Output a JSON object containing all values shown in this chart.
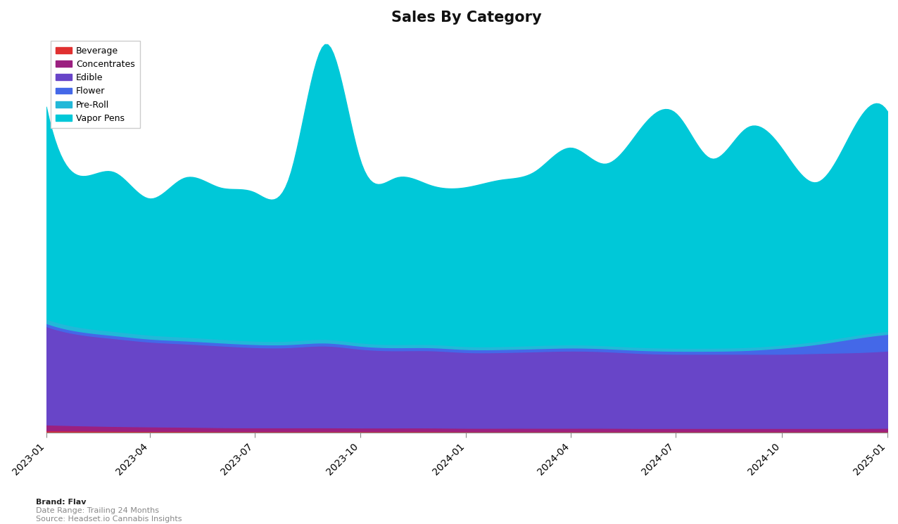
{
  "title": "Sales By Category",
  "categories": [
    "Beverage",
    "Concentrates",
    "Edible",
    "Flower",
    "Pre-Roll",
    "Vapor Pens"
  ],
  "colors": [
    "#e03030",
    "#9b2080",
    "#6845c8",
    "#4468e8",
    "#22b8d8",
    "#00c8d8"
  ],
  "background_color": "#ffffff",
  "footer_brand": "Brand: Flav",
  "footer_daterange": "Date Range: Trailing 24 Months",
  "footer_source": "Source: Headset.io Cannabis Insights",
  "x_dates": [
    "2023-01-01",
    "2023-02-01",
    "2023-03-01",
    "2023-04-01",
    "2023-05-01",
    "2023-06-01",
    "2023-07-01",
    "2023-08-01",
    "2023-09-01",
    "2023-10-01",
    "2023-11-01",
    "2023-12-01",
    "2024-01-01",
    "2024-02-01",
    "2024-03-01",
    "2024-04-01",
    "2024-05-01",
    "2024-06-01",
    "2024-07-01",
    "2024-08-01",
    "2024-09-01",
    "2024-10-01",
    "2024-11-01",
    "2024-12-01",
    "2025-01-01"
  ],
  "beverage": [
    150,
    140,
    130,
    120,
    120,
    110,
    110,
    110,
    110,
    110,
    110,
    110,
    100,
    100,
    100,
    100,
    100,
    100,
    100,
    100,
    100,
    100,
    100,
    100,
    100
  ],
  "concentrates": [
    400,
    350,
    320,
    300,
    280,
    260,
    250,
    250,
    250,
    240,
    240,
    240,
    230,
    230,
    230,
    230,
    230,
    220,
    220,
    220,
    220,
    220,
    220,
    220,
    230
  ],
  "edible": [
    6500,
    6000,
    5800,
    5600,
    5500,
    5400,
    5300,
    5300,
    5400,
    5200,
    5100,
    5100,
    5000,
    5000,
    5050,
    5100,
    5050,
    4950,
    4900,
    4900,
    4900,
    4900,
    4950,
    5000,
    5100
  ],
  "flower": [
    200,
    200,
    200,
    200,
    200,
    200,
    200,
    200,
    200,
    200,
    200,
    200,
    200,
    200,
    200,
    200,
    200,
    200,
    200,
    200,
    250,
    400,
    600,
    900,
    1100
  ],
  "preroll": [
    300,
    280,
    270,
    260,
    250,
    240,
    230,
    230,
    240,
    220,
    210,
    210,
    200,
    200,
    210,
    210,
    200,
    200,
    200,
    200,
    200,
    200,
    200,
    200,
    200
  ],
  "vaporpens": [
    14000,
    10000,
    10500,
    9000,
    10500,
    10000,
    9800,
    11000,
    19500,
    12000,
    11000,
    10500,
    10500,
    11000,
    11500,
    13000,
    12000,
    14500,
    15500,
    12500,
    14500,
    13000,
    10500,
    13500,
    14500
  ]
}
